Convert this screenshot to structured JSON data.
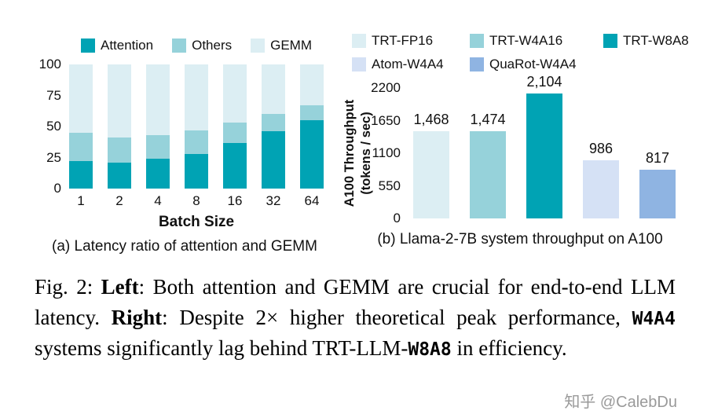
{
  "chart_data": [
    {
      "id": "latency",
      "type": "bar",
      "stacked": true,
      "caption": "(a) Latency ratio of attention and GEMM",
      "xlabel": "Batch Size",
      "ylabel": "",
      "categories": [
        "1",
        "2",
        "4",
        "8",
        "16",
        "32",
        "64"
      ],
      "series": [
        {
          "name": "Attention",
          "color": "#00a3b4",
          "values": [
            22,
            21,
            24,
            28,
            37,
            46,
            55
          ]
        },
        {
          "name": "Others",
          "color": "#96d2da",
          "values": [
            23,
            20,
            19,
            19,
            16,
            14,
            12
          ]
        },
        {
          "name": "GEMM",
          "color": "#dceef3",
          "values": [
            55,
            59,
            57,
            53,
            47,
            40,
            33
          ]
        }
      ],
      "ylim": [
        0,
        100
      ],
      "y_ticks": [
        0,
        25,
        50,
        75,
        100
      ],
      "legend_position": "top",
      "grid": false
    },
    {
      "id": "throughput",
      "type": "bar",
      "caption": "(b) Llama-2-7B system throughput on A100",
      "ylabel_lines": [
        "A100 Throughput",
        "(tokens / sec)"
      ],
      "ylim": [
        0,
        2200
      ],
      "y_ticks": [
        0,
        550,
        1100,
        1650,
        2200
      ],
      "legend_position": "top",
      "grid": false,
      "bars": [
        {
          "name": "TRT-FP16",
          "value": 1468,
          "label": "1,468",
          "color": "#dceef3"
        },
        {
          "name": "TRT-W4A16",
          "value": 1474,
          "label": "1,474",
          "color": "#96d2da"
        },
        {
          "name": "TRT-W8A8",
          "value": 2104,
          "label": "2,104",
          "color": "#00a3b4"
        },
        {
          "name": "Atom-W4A4",
          "value": 986,
          "label": "986",
          "color": "#d5e1f5"
        },
        {
          "name": "QuaRot-W4A4",
          "value": 817,
          "label": "817",
          "color": "#8fb4e2"
        }
      ]
    }
  ],
  "figure_caption": {
    "segments": [
      {
        "text": "Fig. 2: ",
        "style": "normal"
      },
      {
        "text": "Left",
        "style": "bold"
      },
      {
        "text": ": Both attention and GEMM are crucial for end-to-end LLM latency. ",
        "style": "normal"
      },
      {
        "text": "Right",
        "style": "bold"
      },
      {
        "text": ": Despite 2× higher theoretical peak performance, ",
        "style": "normal"
      },
      {
        "text": "W4A4",
        "style": "mono-bold"
      },
      {
        "text": " systems significantly lag behind TRT-LLM-",
        "style": "normal"
      },
      {
        "text": "W8A8",
        "style": "mono-bold"
      },
      {
        "text": " in efficiency.",
        "style": "normal"
      }
    ]
  },
  "watermark": "知乎 @CalebDu"
}
